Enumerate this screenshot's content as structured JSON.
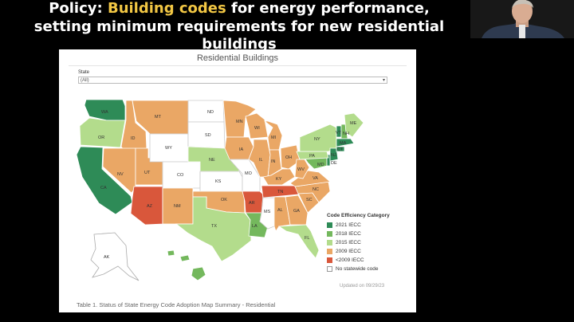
{
  "slide": {
    "title_prefix": "Policy: ",
    "title_highlight": "Building codes",
    "title_suffix": " for energy performance,",
    "subtitle": "setting minimum requirements for new residential buildings"
  },
  "panel": {
    "title": "Residential Buildings",
    "filter_label": "State",
    "filter_value": "(All)",
    "updated": "Updated on 09/29/23",
    "caption": "Table 1. Status of State Energy Code Adoption Map Summary - Residential"
  },
  "legend": {
    "title": "Code Efficiency Category",
    "items": [
      {
        "label": "2021 IECC",
        "color": "#2e8b57"
      },
      {
        "label": "2018 IECC",
        "color": "#74b85d"
      },
      {
        "label": "2015 IECC",
        "color": "#b3dc8c"
      },
      {
        "label": "2009 IECC",
        "color": "#eaa765"
      },
      {
        "label": "<2009 IECC",
        "color": "#d9573b"
      },
      {
        "label": "No statewide code",
        "color": "#ffffff"
      }
    ]
  },
  "states": [
    "WA",
    "OR",
    "CA",
    "ID",
    "NV",
    "AZ",
    "UT",
    "MT",
    "WY",
    "CO",
    "NM",
    "ND",
    "SD",
    "NE",
    "KS",
    "OK",
    "TX",
    "MN",
    "IA",
    "MO",
    "AR",
    "LA",
    "WI",
    "IL",
    "MI",
    "IN",
    "OH",
    "KY",
    "TN",
    "MS",
    "AL",
    "GA",
    "FL",
    "SC",
    "NC",
    "VA",
    "WV",
    "PA",
    "NY",
    "ME",
    "VT",
    "NH",
    "MA",
    "CT",
    "NJ",
    "DE",
    "MD",
    "AK",
    "HI"
  ]
}
